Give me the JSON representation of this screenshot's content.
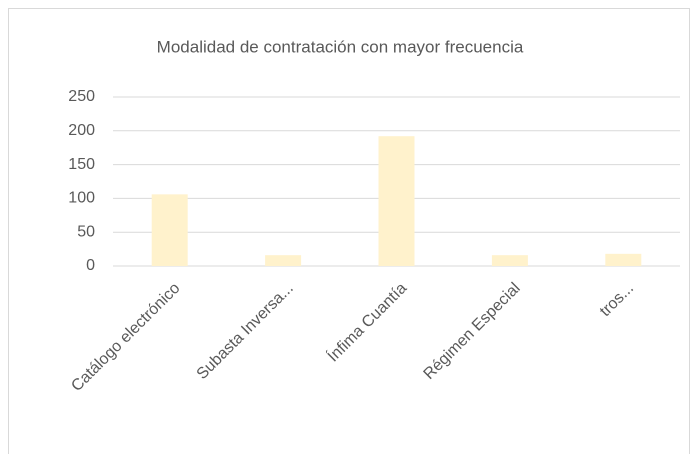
{
  "chart_data": {
    "type": "bar",
    "title": "Modalidad de contratación con mayor frecuencia",
    "categories": [
      "Catálogo electrónico",
      "Subasta Inversa...",
      "Ínfima Cuantía",
      "Régimen Especial",
      "tros..."
    ],
    "values": [
      106,
      16,
      192,
      16,
      18
    ],
    "color": "#fff2cc",
    "ylim": [
      0,
      250
    ],
    "yticks": [
      0,
      50,
      100,
      150,
      200,
      250
    ],
    "grid": true
  }
}
